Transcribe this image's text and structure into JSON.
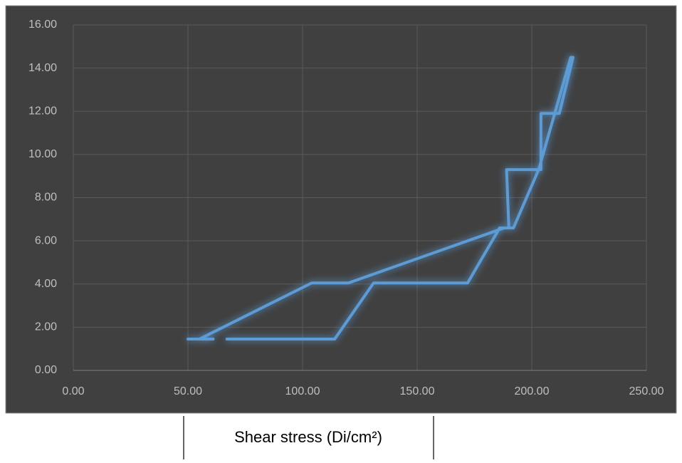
{
  "chart_data": {
    "type": "line",
    "x_label": "Shear stress (Di/cm²)",
    "xlim": [
      0,
      250
    ],
    "ylim": [
      0,
      16
    ],
    "xticks": [
      {
        "value": 0,
        "label": "0.00"
      },
      {
        "value": 50,
        "label": "50.00"
      },
      {
        "value": 100,
        "label": "100.00"
      },
      {
        "value": 150,
        "label": "150.00"
      },
      {
        "value": 200,
        "label": "200.00"
      },
      {
        "value": 250,
        "label": "250.00"
      }
    ],
    "yticks": [
      {
        "value": 0,
        "label": "0.00"
      },
      {
        "value": 2,
        "label": "2.00"
      },
      {
        "value": 4,
        "label": "4.00"
      },
      {
        "value": 6,
        "label": "6.00"
      },
      {
        "value": 8,
        "label": "8.00"
      },
      {
        "value": 10,
        "label": "10.00"
      },
      {
        "value": 12,
        "label": "12.00"
      },
      {
        "value": 14,
        "label": "14.00"
      },
      {
        "value": 16,
        "label": "16.00"
      }
    ],
    "grid": true,
    "series": [
      {
        "color": "#5b9bd5",
        "x": [
          50,
          61,
          null,
          55,
          104,
          120,
          188,
          190,
          189,
          203,
          204,
          204,
          212,
          218,
          217,
          210,
          203,
          192,
          186,
          172,
          131,
          114,
          67
        ],
        "values": [
          1.45,
          1.45,
          null,
          1.45,
          4.05,
          4.05,
          6.6,
          6.6,
          9.3,
          9.3,
          9.3,
          11.9,
          11.9,
          14.5,
          14.5,
          11.9,
          9.3,
          6.6,
          6.6,
          4.05,
          4.05,
          1.45,
          1.45
        ]
      }
    ]
  }
}
